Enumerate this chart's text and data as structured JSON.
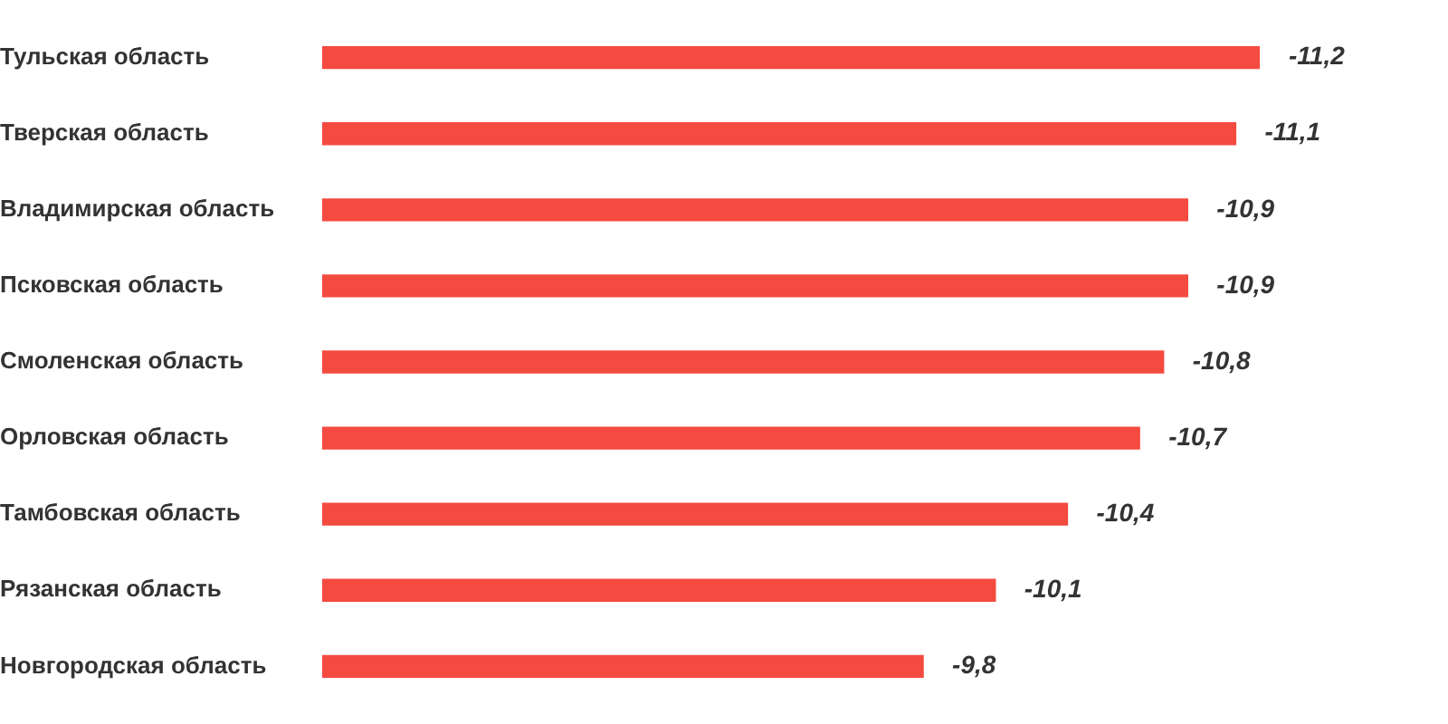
{
  "chart_data": {
    "type": "bar",
    "orientation": "horizontal",
    "categories": [
      "Тульская область",
      "Тверская область",
      "Владимирская область",
      "Псковская область",
      "Смоленская область",
      "Орловская область",
      "Тамбовская область",
      "Рязанская область",
      "Новгородская область"
    ],
    "values": [
      -11.2,
      -11.1,
      -10.9,
      -10.9,
      -10.8,
      -10.7,
      -10.4,
      -10.1,
      -9.8
    ],
    "value_labels": [
      "-11,2",
      "-11,1",
      "-10,9",
      "-10,9",
      "-10,8",
      "-10,7",
      "-10,4",
      "-10,1",
      "-9,8"
    ],
    "color": "#f44a40",
    "xlim": [
      -7.3,
      -11.2
    ],
    "tick_labels": "y",
    "grid": false,
    "legend": false
  }
}
